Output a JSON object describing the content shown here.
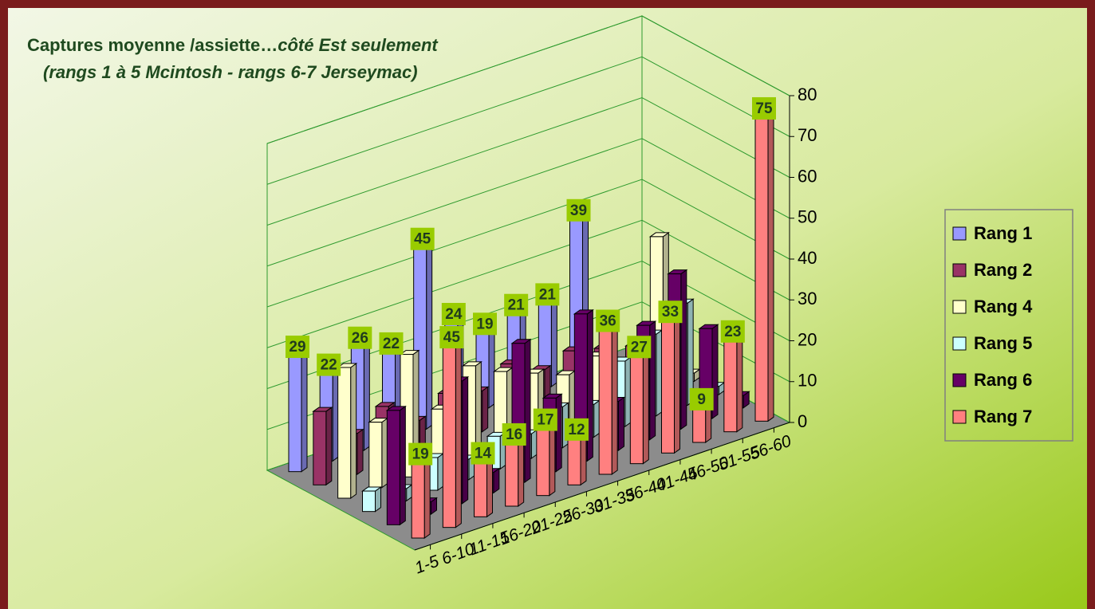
{
  "chart_data": {
    "type": "bar3d",
    "title": "Captures moyenne /assiette…",
    "title_italic": "côté Est seulement",
    "subtitle": "(rangs 1 à 5 Mcintosh - rangs 6-7 Jerseymac)",
    "categories": [
      "1-5",
      "6-10",
      "11-15",
      "16-20",
      "21-25",
      "26-30",
      "31-35",
      "36-40",
      "41-45",
      "46-50",
      "51-55",
      "56-60"
    ],
    "series": [
      {
        "name": "Rang 1",
        "color": "#9999ff",
        "data_labels": true,
        "values": [
          29,
          22,
          26,
          22,
          45,
          24,
          19,
          21,
          21,
          39,
          null,
          null
        ]
      },
      {
        "name": "Rang 2",
        "color": "#993366",
        "data_labels": false,
        "values": [
          18,
          10,
          14,
          8,
          12,
          10,
          14,
          10,
          12,
          10,
          8,
          4
        ]
      },
      {
        "name": "Rang 4",
        "color": "#ffffcc",
        "data_labels": false,
        "values": [
          32,
          16,
          30,
          14,
          22,
          18,
          15,
          12,
          14,
          10,
          38,
          2
        ]
      },
      {
        "name": "Rang 5",
        "color": "#ccffff",
        "data_labels": false,
        "values": [
          5,
          3,
          8,
          5,
          8,
          6,
          10,
          8,
          16,
          20,
          25,
          2
        ]
      },
      {
        "name": "Rang 6",
        "color": "#660066",
        "data_labels": false,
        "values": [
          28,
          3,
          30,
          5,
          34,
          18,
          36,
          12,
          28,
          38,
          22,
          3
        ]
      },
      {
        "name": "Rang 7",
        "color": "#ff8080",
        "data_labels": true,
        "values": [
          19,
          45,
          14,
          16,
          17,
          12,
          36,
          27,
          33,
          9,
          23,
          75
        ]
      }
    ],
    "ylim": [
      0,
      80
    ],
    "yticks": [
      0,
      10,
      20,
      30,
      40,
      50,
      60,
      70,
      80
    ],
    "grid": true,
    "legend": "right"
  }
}
